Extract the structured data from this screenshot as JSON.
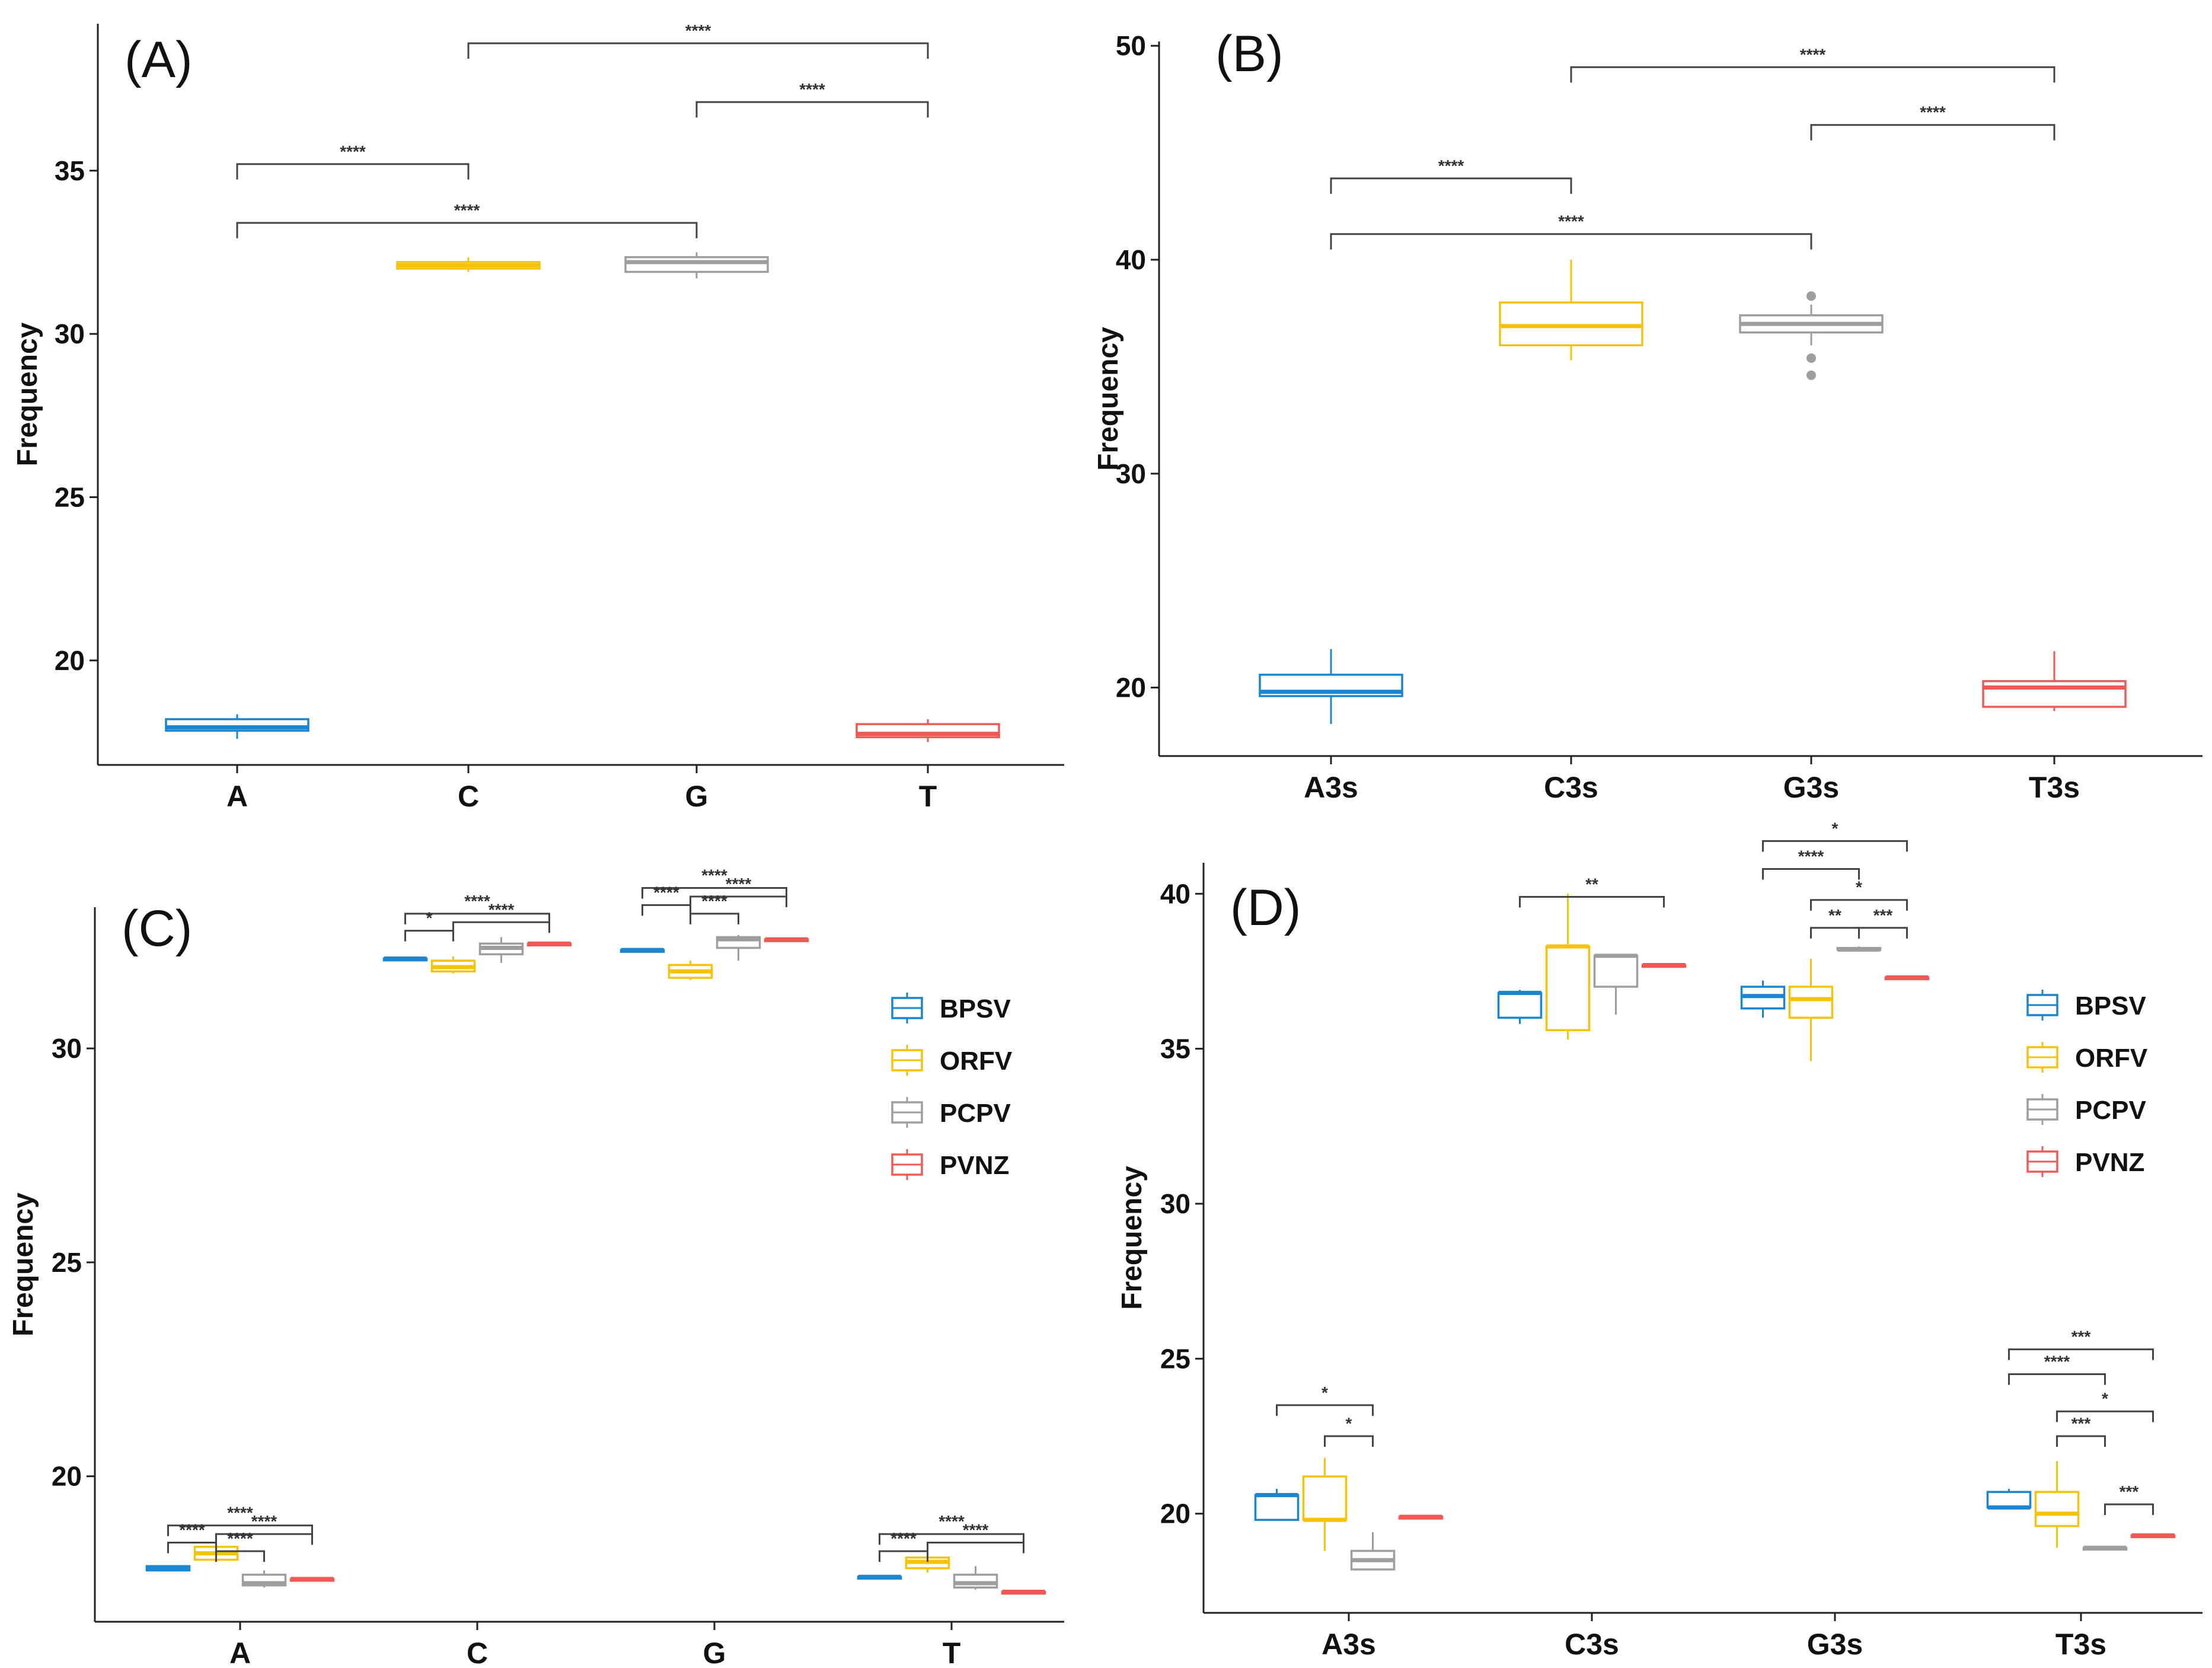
{
  "colors": {
    "BPSV": "#1a85d0",
    "ORFV": "#f5c20e",
    "PCPV": "#9e9e9e",
    "PVNZ": "#ef5a57"
  },
  "legend": [
    {
      "label": "BPSV",
      "color": "#1a85d0"
    },
    {
      "label": "ORFV",
      "color": "#f5c20e"
    },
    {
      "label": "PCPV",
      "color": "#9e9e9e"
    },
    {
      "label": "PVNZ",
      "color": "#ef5a57"
    }
  ],
  "chart_data": [
    {
      "panel": "(A)",
      "type": "box",
      "ylabel": "Frequency",
      "ylim": [
        16.8,
        39.5
      ],
      "yticks": [
        20,
        25,
        30,
        35
      ],
      "categories": [
        "A",
        "C",
        "G",
        "T"
      ],
      "boxes": [
        {
          "cat": "A",
          "color": "#1a85d0",
          "min": 17.6,
          "q1": 17.85,
          "med": 17.95,
          "q3": 18.2,
          "max": 18.35,
          "outliers": []
        },
        {
          "cat": "C",
          "color": "#f5c20e",
          "min": 31.9,
          "q1": 32.0,
          "med": 32.1,
          "q3": 32.2,
          "max": 32.35,
          "outliers": []
        },
        {
          "cat": "G",
          "color": "#9e9e9e",
          "min": 31.7,
          "q1": 31.9,
          "med": 32.2,
          "q3": 32.35,
          "max": 32.5,
          "outliers": []
        },
        {
          "cat": "T",
          "color": "#ef5a57",
          "min": 17.5,
          "q1": 17.65,
          "med": 17.75,
          "q3": 18.05,
          "max": 18.2,
          "outliers": []
        }
      ],
      "brackets": [
        {
          "from": 1,
          "to": 3,
          "y": 38.9,
          "label": "****"
        },
        {
          "from": 2,
          "to": 3,
          "y": 37.1,
          "label": "****"
        },
        {
          "from": 0,
          "to": 1,
          "y": 35.2,
          "label": "****"
        },
        {
          "from": 0,
          "to": 2,
          "y": 33.4,
          "label": "****"
        }
      ]
    },
    {
      "panel": "(B)",
      "type": "box",
      "ylabel": "Frequency",
      "ylim": [
        16.8,
        50.2
      ],
      "yticks": [
        20,
        30,
        40,
        50
      ],
      "categories": [
        "A3s",
        "C3s",
        "G3s",
        "T3s"
      ],
      "boxes": [
        {
          "cat": "A3s",
          "color": "#1a85d0",
          "min": 18.3,
          "q1": 19.6,
          "med": 19.8,
          "q3": 20.6,
          "max": 21.8,
          "outliers": []
        },
        {
          "cat": "C3s",
          "color": "#f5c20e",
          "min": 35.3,
          "q1": 36.0,
          "med": 36.9,
          "q3": 38.0,
          "max": 40.0,
          "outliers": []
        },
        {
          "cat": "G3s",
          "color": "#9e9e9e",
          "min": 36.0,
          "q1": 36.6,
          "med": 37.0,
          "q3": 37.4,
          "max": 37.9,
          "outliers": [
            34.6,
            35.4,
            38.3
          ]
        },
        {
          "cat": "T3s",
          "color": "#ef5a57",
          "min": 18.9,
          "q1": 19.1,
          "med": 20.0,
          "q3": 20.3,
          "max": 21.7,
          "outliers": []
        }
      ],
      "brackets": [
        {
          "from": 1,
          "to": 3,
          "y": 49.0,
          "label": "****"
        },
        {
          "from": 2,
          "to": 3,
          "y": 46.3,
          "label": "****"
        },
        {
          "from": 0,
          "to": 1,
          "y": 43.8,
          "label": "****"
        },
        {
          "from": 0,
          "to": 2,
          "y": 41.2,
          "label": "****"
        }
      ]
    },
    {
      "panel": "(C)",
      "type": "grouped-box",
      "ylabel": "Frequency",
      "ylim": [
        16.6,
        33.3
      ],
      "yticks": [
        20,
        25,
        30
      ],
      "categories": [
        "A",
        "C",
        "G",
        "T"
      ],
      "series": [
        "BPSV",
        "ORFV",
        "PCPV",
        "PVNZ"
      ],
      "boxes": [
        {
          "cat": 0,
          "series": 0,
          "min": 17.8,
          "q1": 17.8,
          "med": 17.85,
          "q3": 17.9,
          "max": 17.9
        },
        {
          "cat": 0,
          "series": 1,
          "min": 18.0,
          "q1": 18.05,
          "med": 18.2,
          "q3": 18.35,
          "max": 18.4
        },
        {
          "cat": 0,
          "series": 2,
          "min": 17.4,
          "q1": 17.45,
          "med": 17.5,
          "q3": 17.7,
          "max": 17.8
        },
        {
          "cat": 0,
          "series": 3,
          "min": 17.6,
          "q1": 17.6,
          "med": 17.6,
          "q3": 17.6,
          "max": 17.6
        },
        {
          "cat": 1,
          "series": 0,
          "min": 32.1,
          "q1": 32.1,
          "med": 32.1,
          "q3": 32.1,
          "max": 32.1
        },
        {
          "cat": 1,
          "series": 1,
          "min": 31.75,
          "q1": 31.8,
          "med": 31.9,
          "q3": 32.05,
          "max": 32.15
        },
        {
          "cat": 1,
          "series": 2,
          "min": 32.0,
          "q1": 32.2,
          "med": 32.35,
          "q3": 32.45,
          "max": 32.6
        },
        {
          "cat": 1,
          "series": 3,
          "min": 32.45,
          "q1": 32.45,
          "med": 32.45,
          "q3": 32.45,
          "max": 32.45
        },
        {
          "cat": 2,
          "series": 0,
          "min": 32.3,
          "q1": 32.3,
          "med": 32.3,
          "q3": 32.3,
          "max": 32.3
        },
        {
          "cat": 2,
          "series": 1,
          "min": 31.6,
          "q1": 31.65,
          "med": 31.8,
          "q3": 31.95,
          "max": 32.05
        },
        {
          "cat": 2,
          "series": 2,
          "min": 32.05,
          "q1": 32.35,
          "med": 32.55,
          "q3": 32.6,
          "max": 32.65
        },
        {
          "cat": 2,
          "series": 3,
          "min": 32.55,
          "q1": 32.55,
          "med": 32.55,
          "q3": 32.55,
          "max": 32.55
        },
        {
          "cat": 3,
          "series": 0,
          "min": 17.65,
          "q1": 17.65,
          "med": 17.65,
          "q3": 17.65,
          "max": 17.65
        },
        {
          "cat": 3,
          "series": 1,
          "min": 17.75,
          "q1": 17.85,
          "med": 18.0,
          "q3": 18.1,
          "max": 18.2
        },
        {
          "cat": 3,
          "series": 2,
          "min": 17.35,
          "q1": 17.4,
          "med": 17.5,
          "q3": 17.7,
          "max": 17.9
        },
        {
          "cat": 3,
          "series": 3,
          "min": 17.3,
          "q1": 17.3,
          "med": 17.3,
          "q3": 17.3,
          "max": 17.3
        }
      ],
      "brackets": [
        {
          "cat": 0,
          "from": 0,
          "to": 3,
          "y": 18.85,
          "label": "****"
        },
        {
          "cat": 0,
          "from": 1,
          "to": 3,
          "y": 18.65,
          "label": "****"
        },
        {
          "cat": 0,
          "from": 0,
          "to": 1,
          "y": 18.45,
          "label": "****"
        },
        {
          "cat": 0,
          "from": 1,
          "to": 2,
          "y": 18.25,
          "label": "****"
        },
        {
          "cat": 1,
          "from": 0,
          "to": 3,
          "y": 33.15,
          "label": "****"
        },
        {
          "cat": 1,
          "from": 1,
          "to": 3,
          "y": 32.95,
          "label": "****"
        },
        {
          "cat": 1,
          "from": 0,
          "to": 1,
          "y": 32.75,
          "label": "*"
        },
        {
          "cat": 2,
          "from": 0,
          "to": 3,
          "y": 33.75,
          "label": "****"
        },
        {
          "cat": 2,
          "from": 1,
          "to": 3,
          "y": 33.55,
          "label": "****"
        },
        {
          "cat": 2,
          "from": 0,
          "to": 1,
          "y": 33.35,
          "label": "****"
        },
        {
          "cat": 2,
          "from": 1,
          "to": 2,
          "y": 33.15,
          "label": "****"
        },
        {
          "cat": 3,
          "from": 0,
          "to": 3,
          "y": 18.65,
          "label": "****"
        },
        {
          "cat": 3,
          "from": 1,
          "to": 3,
          "y": 18.45,
          "label": "****"
        },
        {
          "cat": 3,
          "from": 0,
          "to": 1,
          "y": 18.25,
          "label": "****"
        }
      ]
    },
    {
      "panel": "(D)",
      "type": "grouped-box",
      "ylabel": "Frequency",
      "ylim": [
        16.8,
        41.0
      ],
      "yticks": [
        20,
        25,
        30,
        35,
        40
      ],
      "categories": [
        "A3s",
        "C3s",
        "G3s",
        "T3s"
      ],
      "series": [
        "BPSV",
        "ORFV",
        "PCPV",
        "PVNZ"
      ],
      "boxes": [
        {
          "cat": 0,
          "series": 0,
          "min": 19.8,
          "q1": 19.8,
          "med": 20.6,
          "q3": 20.6,
          "max": 20.8
        },
        {
          "cat": 0,
          "series": 1,
          "min": 18.8,
          "q1": 19.8,
          "med": 19.8,
          "q3": 21.2,
          "max": 21.8
        },
        {
          "cat": 0,
          "series": 2,
          "min": 18.2,
          "q1": 18.2,
          "med": 18.5,
          "q3": 18.8,
          "max": 19.4
        },
        {
          "cat": 0,
          "series": 3,
          "min": 19.9,
          "q1": 19.9,
          "med": 19.9,
          "q3": 19.9,
          "max": 19.9
        },
        {
          "cat": 1,
          "series": 0,
          "min": 35.8,
          "q1": 36.0,
          "med": 36.8,
          "q3": 36.8,
          "max": 36.9
        },
        {
          "cat": 1,
          "series": 1,
          "min": 35.3,
          "q1": 35.6,
          "med": 38.3,
          "q3": 38.3,
          "max": 40.0
        },
        {
          "cat": 1,
          "series": 2,
          "min": 36.1,
          "q1": 37.0,
          "med": 38.0,
          "q3": 38.0,
          "max": 38.0
        },
        {
          "cat": 1,
          "series": 3,
          "min": 37.7,
          "q1": 37.7,
          "med": 37.7,
          "q3": 37.7,
          "max": 37.7
        },
        {
          "cat": 2,
          "series": 0,
          "min": 36.0,
          "q1": 36.3,
          "med": 36.7,
          "q3": 37.0,
          "max": 37.2
        },
        {
          "cat": 2,
          "series": 1,
          "min": 34.6,
          "q1": 36.0,
          "med": 36.6,
          "q3": 37.0,
          "max": 37.9
        },
        {
          "cat": 2,
          "series": 2,
          "min": 38.2,
          "q1": 38.2,
          "med": 38.2,
          "q3": 38.25,
          "max": 38.3
        },
        {
          "cat": 2,
          "series": 3,
          "min": 37.3,
          "q1": 37.3,
          "med": 37.3,
          "q3": 37.3,
          "max": 37.3
        },
        {
          "cat": 3,
          "series": 0,
          "min": 20.2,
          "q1": 20.2,
          "med": 20.2,
          "q3": 20.7,
          "max": 20.8
        },
        {
          "cat": 3,
          "series": 1,
          "min": 18.9,
          "q1": 19.6,
          "med": 20.0,
          "q3": 20.7,
          "max": 21.7
        },
        {
          "cat": 3,
          "series": 2,
          "min": 18.9,
          "q1": 18.9,
          "med": 18.9,
          "q3": 18.9,
          "max": 18.9
        },
        {
          "cat": 3,
          "series": 3,
          "min": 19.3,
          "q1": 19.3,
          "med": 19.3,
          "q3": 19.3,
          "max": 19.3
        }
      ],
      "brackets": [
        {
          "cat": 0,
          "from": 0,
          "to": 2,
          "y": 23.5,
          "label": "*"
        },
        {
          "cat": 0,
          "from": 1,
          "to": 2,
          "y": 22.5,
          "label": "*"
        },
        {
          "cat": 1,
          "from": 0,
          "to": 3,
          "y": 39.9,
          "label": "**"
        },
        {
          "cat": 2,
          "from": 0,
          "to": 3,
          "y": 41.7,
          "label": "*"
        },
        {
          "cat": 2,
          "from": 0,
          "to": 2,
          "y": 40.8,
          "label": "****"
        },
        {
          "cat": 2,
          "from": 1,
          "to": 3,
          "y": 39.8,
          "label": "*"
        },
        {
          "cat": 2,
          "from": 1,
          "to": 2,
          "y": 38.9,
          "label": "**"
        },
        {
          "cat": 2,
          "from": 2,
          "to": 3,
          "y": 38.9,
          "label": "***"
        },
        {
          "cat": 3,
          "from": 0,
          "to": 3,
          "y": 25.3,
          "label": "***"
        },
        {
          "cat": 3,
          "from": 0,
          "to": 2,
          "y": 24.5,
          "label": "****"
        },
        {
          "cat": 3,
          "from": 1,
          "to": 3,
          "y": 23.3,
          "label": "*"
        },
        {
          "cat": 3,
          "from": 1,
          "to": 2,
          "y": 22.5,
          "label": "***"
        },
        {
          "cat": 3,
          "from": 2,
          "to": 3,
          "y": 20.3,
          "label": "***"
        }
      ]
    }
  ]
}
